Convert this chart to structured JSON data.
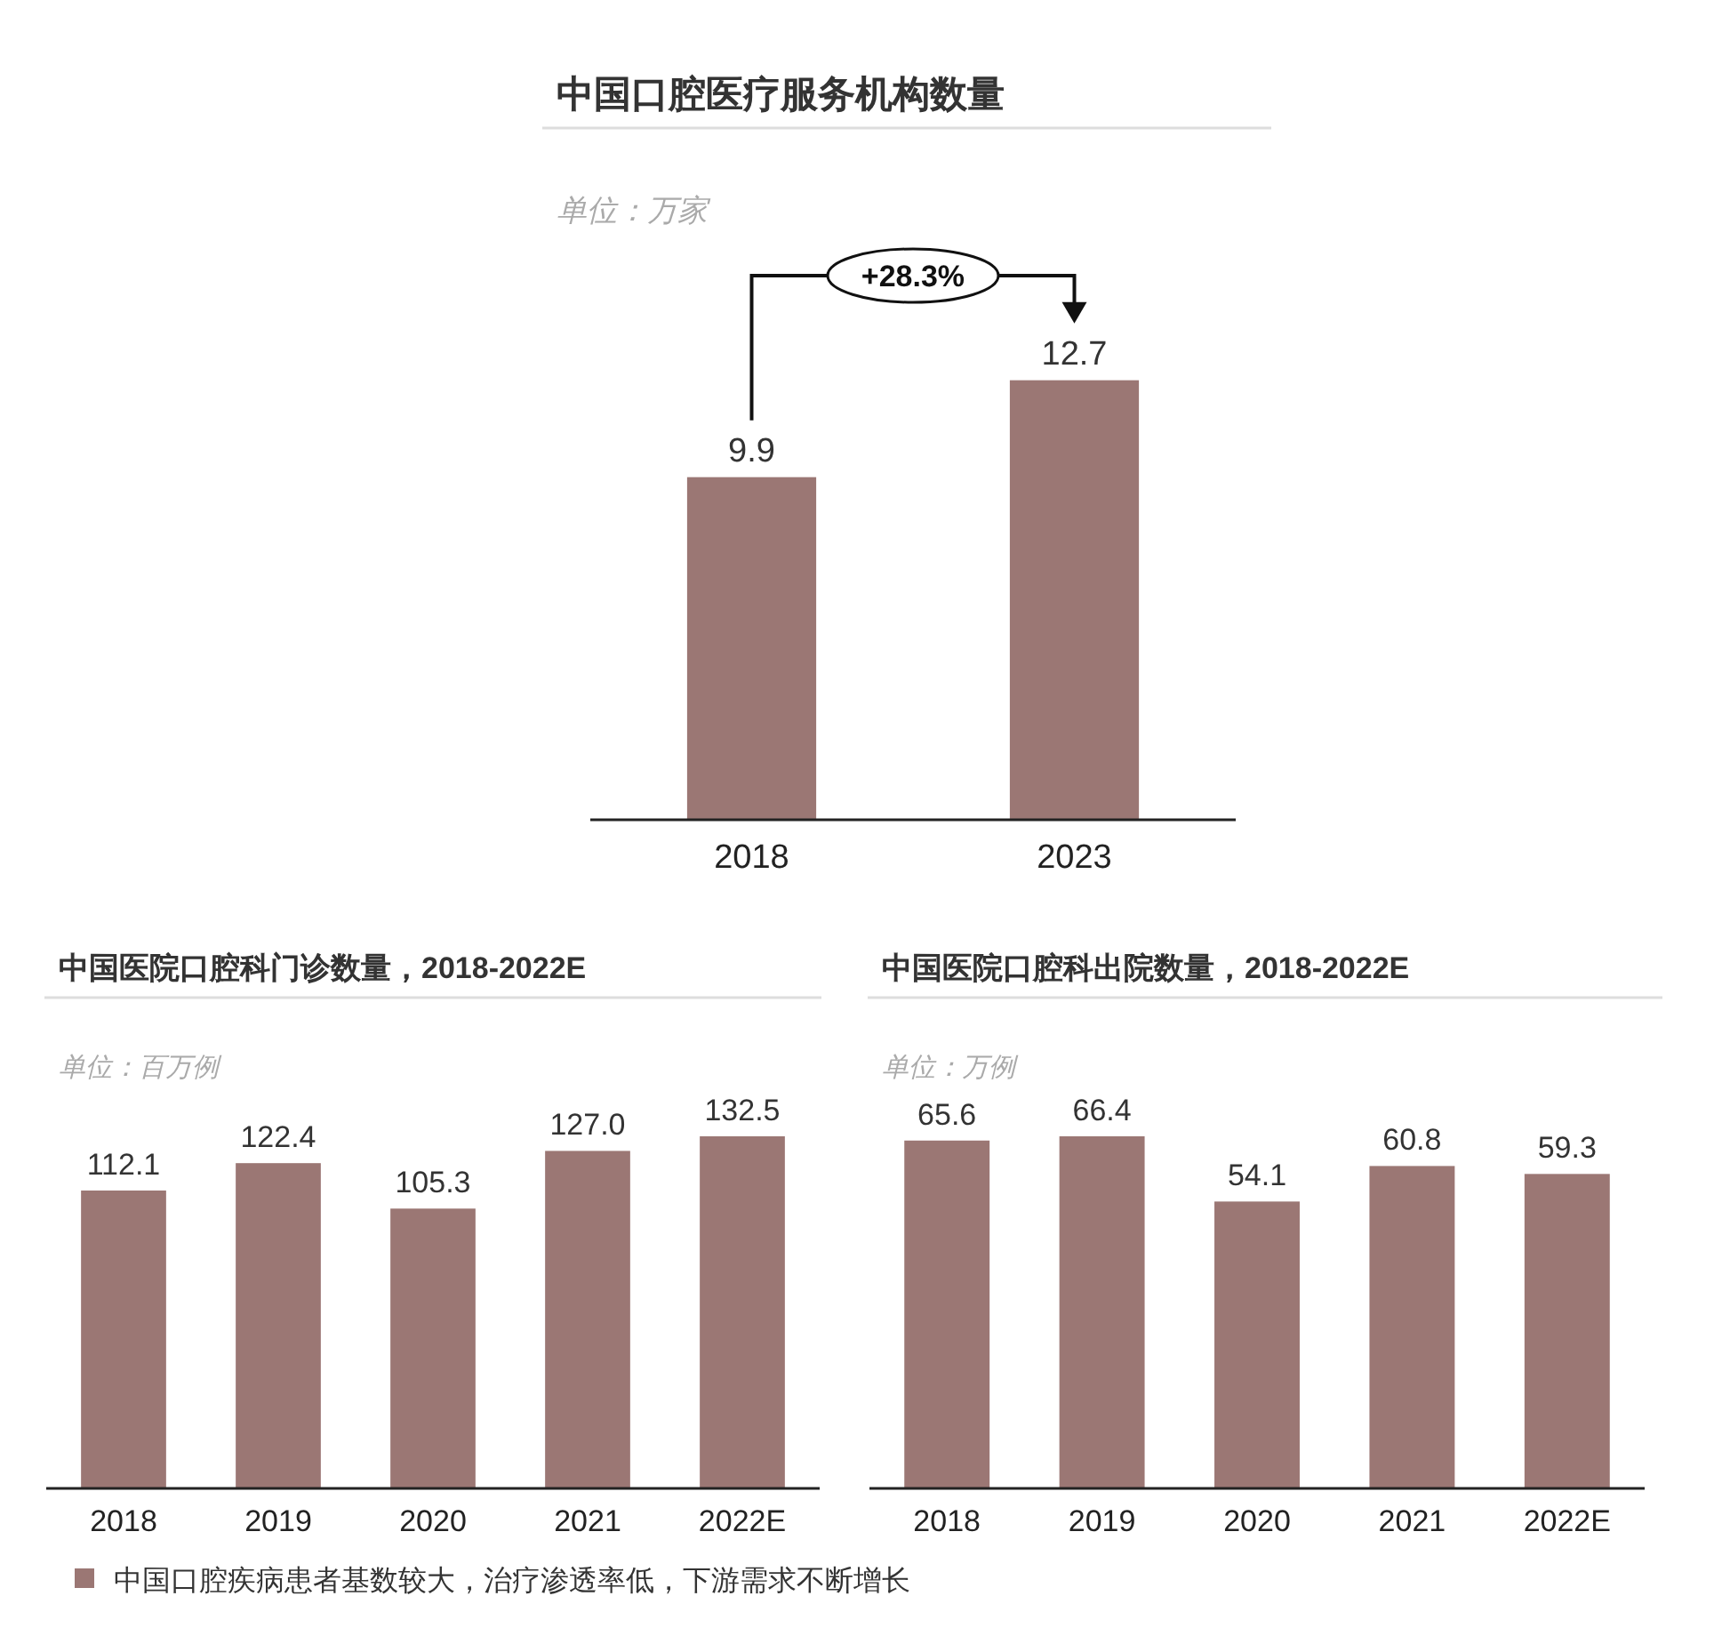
{
  "chart_data": [
    {
      "type": "bar",
      "title": "中国口腔医疗服务机构数量",
      "subtitle": "单位：万家",
      "categories": [
        "2018",
        "2023"
      ],
      "values": [
        9.9,
        12.7
      ],
      "color": "#9b7774",
      "data_labels": true,
      "annotations": [
        "+28.3%"
      ]
    },
    {
      "type": "bar",
      "title": "中国医院口腔科门诊数量，2018-2022E",
      "subtitle": "单位：百万例",
      "categories": [
        "2018",
        "2019",
        "2020",
        "2021",
        "2022E"
      ],
      "values": [
        112.1,
        122.4,
        105.3,
        127.0,
        132.5
      ],
      "value_labels": [
        "112.1",
        "122.4",
        "105.3",
        "127.0",
        "132.5"
      ],
      "color": "#9b7774"
    },
    {
      "type": "bar",
      "title": "中国医院口腔科出院数量，2018-2022E",
      "subtitle": "单位：万例",
      "categories": [
        "2018",
        "2019",
        "2020",
        "2021",
        "2022E"
      ],
      "values": [
        65.6,
        66.4,
        54.1,
        60.8,
        59.3
      ],
      "color": "#9b7774",
      "data_labels": true,
      "annotations": [
        "中国口腔疾病患者基数较大，治疗渗透率低，下游需求不断增长"
      ]
    }
  ]
}
